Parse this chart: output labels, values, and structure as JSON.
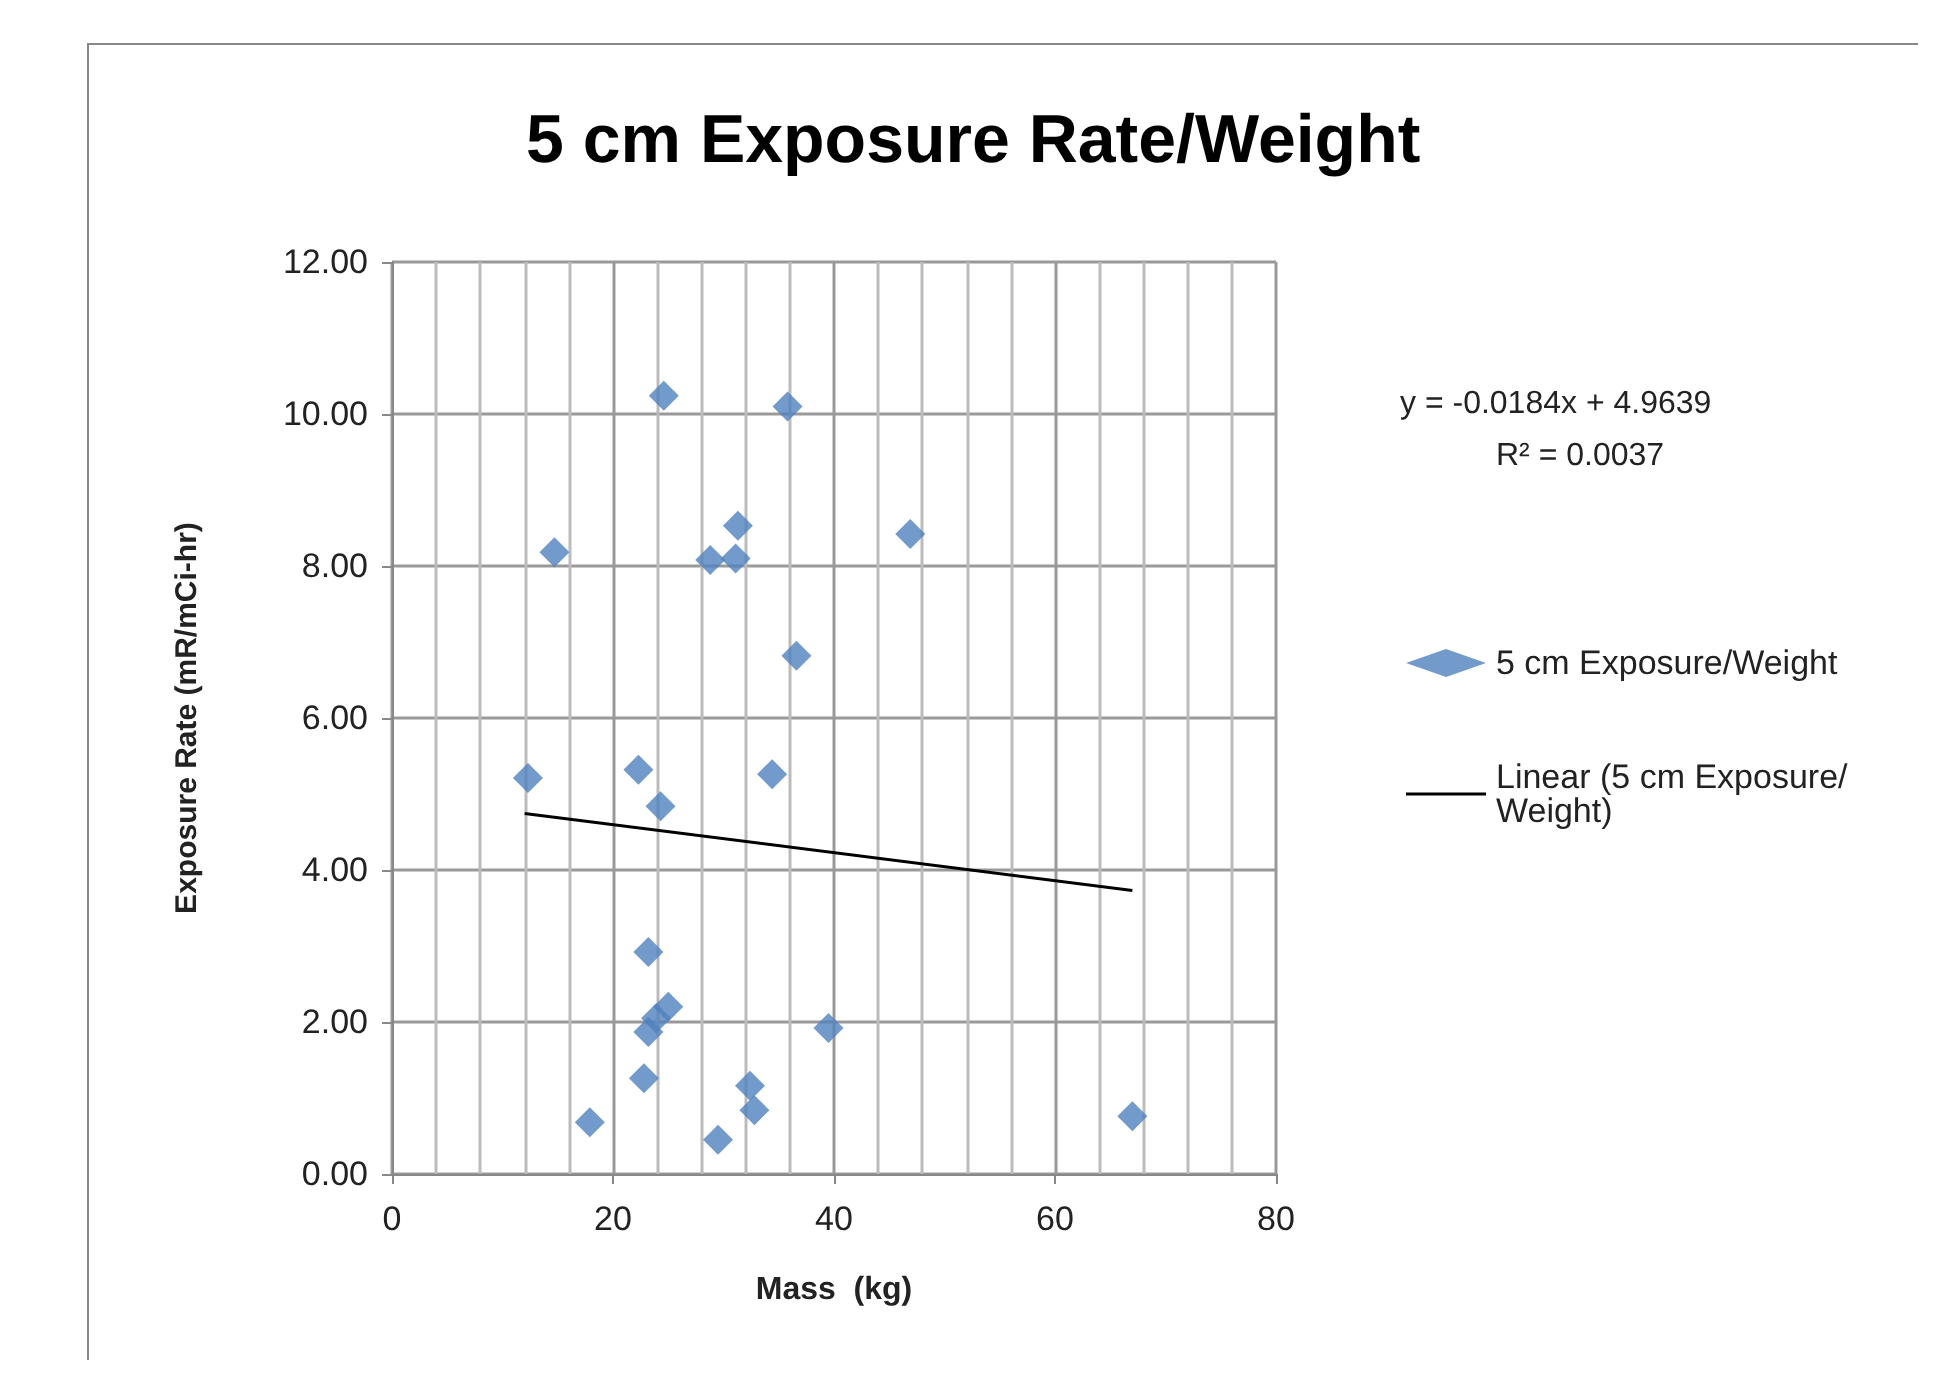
{
  "chart_data": {
    "type": "scatter",
    "title": "5 cm Exposure Rate/Weight",
    "xlabel": "Mass  (kg)",
    "ylabel": "Exposure Rate (mR/mCi-hr)",
    "series": [
      {
        "name": "5 cm Exposure/Weight",
        "color": "#4f81bd",
        "marker": "diamond",
        "x": [
          12.3,
          14.7,
          17.9,
          22.3,
          22.8,
          23.2,
          23.2,
          23.9,
          25.0,
          24.3,
          24.6,
          28.8,
          29.5,
          31.1,
          31.3,
          32.4,
          32.8,
          34.4,
          35.8,
          36.6,
          39.5,
          46.9,
          67.0
        ],
        "values": [
          5.21,
          8.18,
          0.68,
          5.32,
          1.26,
          2.92,
          1.87,
          2.05,
          2.2,
          4.84,
          10.24,
          8.08,
          0.45,
          8.1,
          8.53,
          1.16,
          0.84,
          5.26,
          10.1,
          6.82,
          1.92,
          8.42,
          0.76
        ]
      },
      {
        "name": "Linear (5 cm Exposure/Weight)",
        "type": "line",
        "color": "#000000",
        "marker": "none",
        "x": [
          12,
          67
        ],
        "values": [
          4.743,
          3.731
        ]
      }
    ],
    "xlim": [
      0,
      80
    ],
    "xticks": [
      0,
      20,
      40,
      60,
      80
    ],
    "ylim": [
      0,
      12
    ],
    "yticks": [
      {
        "value": 0,
        "label": "0.00"
      },
      {
        "value": 2,
        "label": "2.00"
      },
      {
        "value": 4,
        "label": "4.00"
      },
      {
        "value": 6,
        "label": "6.00"
      },
      {
        "value": 8,
        "label": "8.00"
      },
      {
        "value": 10,
        "label": "10.00"
      },
      {
        "value": 12,
        "label": "12.00"
      }
    ],
    "grid": true,
    "legend": "right",
    "annotations": [
      "y = -0.0184x + 4.9639",
      "R² = 0.0037"
    ]
  }
}
